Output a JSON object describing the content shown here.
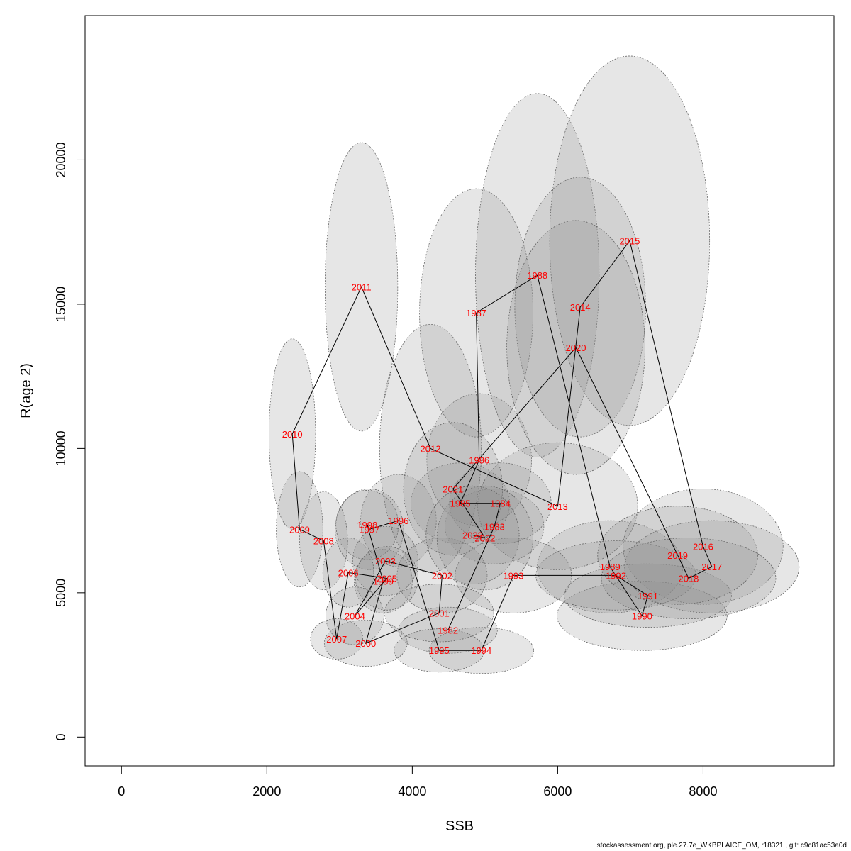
{
  "chart_data": {
    "type": "scatter",
    "title": "",
    "xlabel": "SSB",
    "ylabel": "R(age 2)",
    "xlim": [
      -500,
      9800
    ],
    "ylim": [
      -1000,
      25000
    ],
    "xticks": [
      0,
      2000,
      4000,
      6000,
      8000
    ],
    "yticks": [
      0,
      5000,
      10000,
      15000,
      20000
    ],
    "grid": false,
    "legend": "none",
    "colors": {
      "label": "#ff0000",
      "ellipse_fill": "#8c8c8c",
      "ellipse_stroke": "#555555",
      "line": "#000000"
    },
    "points": [
      {
        "year": "1982",
        "x": 4490,
        "y": 3700,
        "sx": 680,
        "sy": 800
      },
      {
        "year": "1983",
        "x": 5130,
        "y": 7300,
        "sx": 680,
        "sy": 1300
      },
      {
        "year": "1984",
        "x": 5210,
        "y": 8100,
        "sx": 700,
        "sy": 1400
      },
      {
        "year": "1985",
        "x": 4660,
        "y": 8100,
        "sx": 680,
        "sy": 1400
      },
      {
        "year": "1986",
        "x": 4920,
        "y": 9600,
        "sx": 720,
        "sy": 2300
      },
      {
        "year": "1987",
        "x": 4880,
        "y": 14700,
        "sx": 780,
        "sy": 4300
      },
      {
        "year": "1988",
        "x": 5720,
        "y": 16000,
        "sx": 850,
        "sy": 6300
      },
      {
        "year": "1989",
        "x": 6720,
        "y": 5900,
        "sx": 1000,
        "sy": 1600
      },
      {
        "year": "1990",
        "x": 7160,
        "y": 4200,
        "sx": 1170,
        "sy": 1200
      },
      {
        "year": "1991",
        "x": 7240,
        "y": 4900,
        "sx": 1150,
        "sy": 1100
      },
      {
        "year": "1992",
        "x": 6800,
        "y": 5600,
        "sx": 1100,
        "sy": 1200
      },
      {
        "year": "1993",
        "x": 5390,
        "y": 5600,
        "sx": 800,
        "sy": 1300
      },
      {
        "year": "1994",
        "x": 4950,
        "y": 3000,
        "sx": 720,
        "sy": 800
      },
      {
        "year": "1995",
        "x": 4370,
        "y": 3000,
        "sx": 620,
        "sy": 750
      },
      {
        "year": "1996",
        "x": 3810,
        "y": 7500,
        "sx": 520,
        "sy": 1600
      },
      {
        "year": "1997",
        "x": 3410,
        "y": 7200,
        "sx": 470,
        "sy": 1400
      },
      {
        "year": "1998",
        "x": 3380,
        "y": 7350,
        "sx": 430,
        "sy": 1200
      },
      {
        "year": "1999",
        "x": 3600,
        "y": 5400,
        "sx": 400,
        "sy": 1100
      },
      {
        "year": "2000",
        "x": 3360,
        "y": 3250,
        "sx": 570,
        "sy": 800
      },
      {
        "year": "2001",
        "x": 4370,
        "y": 4300,
        "sx": 750,
        "sy": 1000
      },
      {
        "year": "2002",
        "x": 4410,
        "y": 5600,
        "sx": 620,
        "sy": 1300
      },
      {
        "year": "2003",
        "x": 3630,
        "y": 6100,
        "sx": 450,
        "sy": 1200
      },
      {
        "year": "2004",
        "x": 3210,
        "y": 4200,
        "sx": 400,
        "sy": 1000
      },
      {
        "year": "2005",
        "x": 3650,
        "y": 5500,
        "sx": 430,
        "sy": 1100
      },
      {
        "year": "2006",
        "x": 3120,
        "y": 5700,
        "sx": 350,
        "sy": 1200
      },
      {
        "year": "2007",
        "x": 2960,
        "y": 3400,
        "sx": 360,
        "sy": 700
      },
      {
        "year": "2008",
        "x": 2780,
        "y": 6800,
        "sx": 330,
        "sy": 1700
      },
      {
        "year": "2009",
        "x": 2450,
        "y": 7200,
        "sx": 320,
        "sy": 2000
      },
      {
        "year": "2010",
        "x": 2350,
        "y": 10500,
        "sx": 320,
        "sy": 3300
      },
      {
        "year": "2011",
        "x": 3300,
        "y": 15600,
        "sx": 500,
        "sy": 5000
      },
      {
        "year": "2012",
        "x": 4250,
        "y": 10000,
        "sx": 700,
        "sy": 4300
      },
      {
        "year": "2013",
        "x": 6000,
        "y": 8000,
        "sx": 1100,
        "sy": 2200
      },
      {
        "year": "2014",
        "x": 6310,
        "y": 14900,
        "sx": 900,
        "sy": 4500
      },
      {
        "year": "2015",
        "x": 6990,
        "y": 17200,
        "sx": 1100,
        "sy": 6400
      },
      {
        "year": "2016",
        "x": 8000,
        "y": 6600,
        "sx": 1100,
        "sy": 2000
      },
      {
        "year": "2017",
        "x": 8120,
        "y": 5900,
        "sx": 1200,
        "sy": 1600
      },
      {
        "year": "2018",
        "x": 7800,
        "y": 5500,
        "sx": 1200,
        "sy": 1400
      },
      {
        "year": "2019",
        "x": 7650,
        "y": 6300,
        "sx": 1100,
        "sy": 1700
      },
      {
        "year": "2020",
        "x": 6250,
        "y": 13500,
        "sx": 950,
        "sy": 4400
      },
      {
        "year": "2021",
        "x": 4560,
        "y": 8600,
        "sx": 680,
        "sy": 2300
      },
      {
        "year": "2022",
        "x": 5000,
        "y": 6900,
        "sx": 660,
        "sy": 1800
      },
      {
        "year": "2023",
        "x": 4830,
        "y": 7000,
        "sx": 640,
        "sy": 1700
      }
    ],
    "path_order": [
      "1982",
      "1983",
      "1984",
      "1985",
      "1986",
      "1987",
      "1988",
      "1989",
      "1990",
      "1991",
      "1992",
      "1993",
      "1994",
      "1995",
      "1996",
      "1997",
      "1998",
      "1999",
      "2000",
      "2001",
      "2002",
      "2003",
      "2004",
      "2005",
      "2006",
      "2007",
      "2008",
      "2009",
      "2010",
      "2011",
      "2012",
      "2013",
      "2014",
      "2015",
      "2016",
      "2017",
      "2018",
      "2019",
      "2020",
      "2021",
      "2022",
      "2023"
    ]
  },
  "footer": "stockassessment.org, ple.27.7e_WKBPLAICE_OM, r18321 , git: c9c81ac53a0d"
}
